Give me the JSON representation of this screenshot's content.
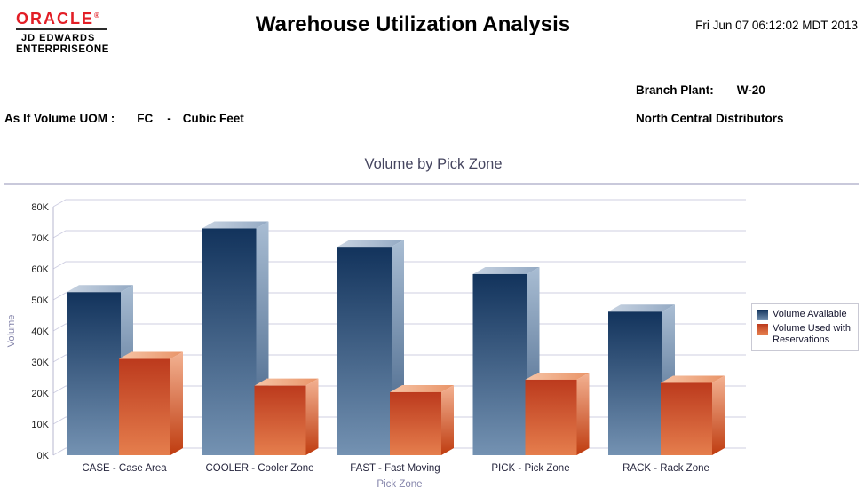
{
  "header": {
    "logo": {
      "brand": "ORACLE",
      "registered_mark": "®",
      "line1": "JD EDWARDS",
      "line2": "ENTERPRISEONE",
      "brand_color": "#e21e26"
    },
    "title": "Warehouse Utilization Analysis",
    "datetime": "Fri Jun 07 06:12:02 MDT 2013"
  },
  "info": {
    "uom_label": "As If Volume UOM :",
    "uom_code": "FC",
    "uom_dash": "-",
    "uom_desc": "Cubic Feet",
    "branch_label": "Branch Plant:",
    "branch_value": "W-20",
    "branch_name": "North Central Distributors"
  },
  "chart_data": {
    "type": "bar",
    "projection": "3d",
    "title": "Volume by Pick Zone",
    "xlabel": "Pick Zone",
    "ylabel": "Volume",
    "ylim": [
      0,
      80000
    ],
    "ytick_labels": [
      "0K",
      "10K",
      "20K",
      "30K",
      "40K",
      "50K",
      "60K",
      "70K",
      "80K"
    ],
    "grid": true,
    "legend_position": "right",
    "categories": [
      "CASE - Case Area",
      "COOLER - Cooler Zone",
      "FAST - Fast Moving",
      "PICK - Pick Zone",
      "RACK - Rack Zone"
    ],
    "series": [
      {
        "name": "Volume Available",
        "values": [
          52500,
          73000,
          67100,
          58300,
          46200
        ],
        "colors": {
          "front_top": "#12335c",
          "front_bottom": "#7492b2",
          "side_top": "#a9bdd3",
          "side_bottom": "#3a5a80",
          "top_left": "#c9d4e2",
          "top_right": "#93a9c3"
        }
      },
      {
        "name": "Volume Used with Reservations",
        "values": [
          31000,
          22400,
          20300,
          24300,
          23300
        ],
        "colors": {
          "front_top": "#bc3a1d",
          "front_bottom": "#e57e4d",
          "side_top": "#f3b292",
          "side_bottom": "#bf3c10",
          "top_left": "#f6c4a6",
          "top_right": "#e99468"
        }
      }
    ],
    "style": {
      "grid_color": "#cfcfe2",
      "axis_color": "#b7b7cf",
      "tick_label_color": "#1a1a1a",
      "category_label_color": "#26263e",
      "axis_title_color": "#8585ab",
      "title_color": "#45455f"
    }
  }
}
